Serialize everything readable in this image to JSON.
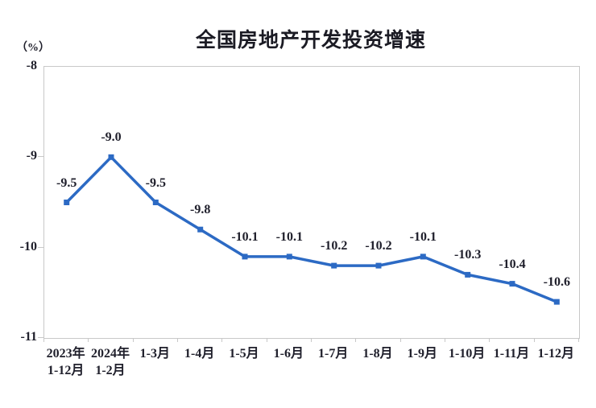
{
  "chart_data": {
    "type": "line",
    "title": "全国房地产开发投资增速",
    "unit_label": "（%）",
    "categories": [
      [
        "2023年",
        "1-12月"
      ],
      [
        "2024年",
        "1-2月"
      ],
      [
        "1-3月"
      ],
      [
        "1-4月"
      ],
      [
        "1-5月"
      ],
      [
        "1-6月"
      ],
      [
        "1-7月"
      ],
      [
        "1-8月"
      ],
      [
        "1-9月"
      ],
      [
        "1-10月"
      ],
      [
        "1-11月"
      ],
      [
        "1-12月"
      ]
    ],
    "values": [
      -9.5,
      -9.0,
      -9.5,
      -9.8,
      -10.1,
      -10.1,
      -10.2,
      -10.2,
      -10.1,
      -10.3,
      -10.4,
      -10.6
    ],
    "data_labels": [
      "-9.5",
      "-9.0",
      "-9.5",
      "-9.8",
      "-10.1",
      "-10.1",
      "-10.2",
      "-10.2",
      "-10.1",
      "-10.3",
      "-10.4",
      "-10.6"
    ],
    "y_ticks": [
      "-8",
      "-9",
      "-10",
      "-11"
    ],
    "ylim": [
      -11,
      -8
    ],
    "grid": false,
    "legend_position": "none",
    "marker": "square",
    "colors": {
      "line": "#2c6ac4",
      "axis": "#c8c8c8",
      "text": "#20202c"
    }
  }
}
